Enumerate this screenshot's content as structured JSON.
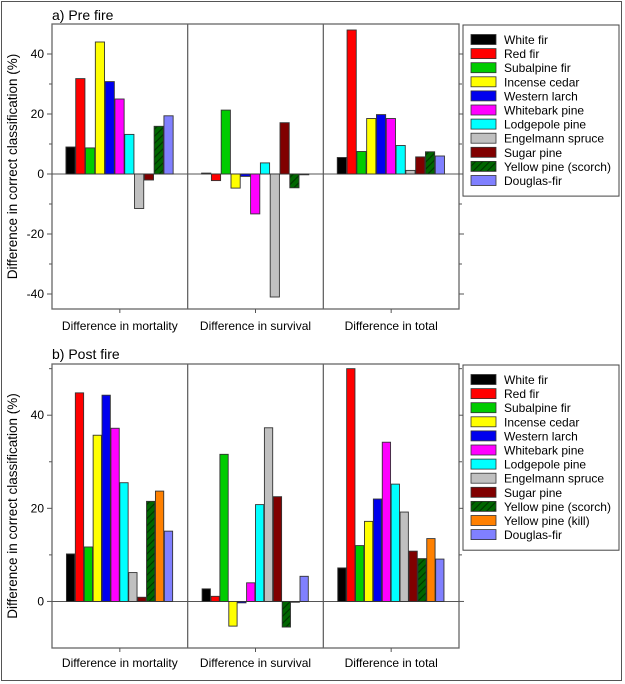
{
  "chart_data": [
    {
      "type": "bar",
      "title": "a) Pre fire",
      "ylabel": "Difference in correct classification (%)",
      "xlabel": "",
      "categories": [
        "Difference in mortality",
        "Difference in survival",
        "Difference in total"
      ],
      "ylim": [
        -45,
        50
      ],
      "yticks": [
        -40,
        -20,
        0,
        20,
        40
      ],
      "ytick_labels": [
        "-40",
        "-20",
        "0",
        "20",
        "40"
      ],
      "minor_yticks": [
        -30,
        -10,
        10,
        30
      ],
      "grid": false,
      "legend_position": "right",
      "series": [
        {
          "name": "White fir",
          "color": "#000000",
          "pattern": "solid",
          "values": [
            9,
            0.3,
            5.5
          ]
        },
        {
          "name": "Red fir",
          "color": "#ff0000",
          "pattern": "solid",
          "values": [
            31.8,
            -2.2,
            48
          ]
        },
        {
          "name": "Subalpine fir",
          "color": "#00cc00",
          "pattern": "solid",
          "values": [
            8.7,
            21.3,
            7.5
          ]
        },
        {
          "name": "Incense cedar",
          "color": "#ffff00",
          "pattern": "solid",
          "values": [
            44,
            -4.7,
            18.5
          ]
        },
        {
          "name": "Western larch",
          "color": "#0000ee",
          "pattern": "solid",
          "values": [
            30.8,
            -0.8,
            19.8
          ]
        },
        {
          "name": "Whitebark pine",
          "color": "#ff00ff",
          "pattern": "solid",
          "values": [
            25,
            -13.3,
            18.5
          ]
        },
        {
          "name": "Lodgepole pine",
          "color": "#00ffff",
          "pattern": "solid",
          "values": [
            13.2,
            3.7,
            9.5
          ]
        },
        {
          "name": "Engelmann spruce",
          "color": "#c0c0c0",
          "pattern": "solid",
          "values": [
            -11.5,
            -41,
            1.2
          ]
        },
        {
          "name": "Sugar pine",
          "color": "#800000",
          "pattern": "solid",
          "values": [
            -2,
            17.1,
            5.7
          ]
        },
        {
          "name": "Yellow pine (scorch)",
          "color": "#006600",
          "pattern": "hatch",
          "values": [
            15.9,
            -4.6,
            7.4
          ]
        },
        {
          "name": "Douglas-fir",
          "color": "#8080ff",
          "pattern": "solid",
          "values": [
            19.4,
            -0.2,
            6
          ]
        }
      ]
    },
    {
      "type": "bar",
      "title": "b) Post fire",
      "ylabel": "Difference in correct classification (%)",
      "xlabel": "",
      "categories": [
        "Difference in mortality",
        "Difference in survival",
        "Difference in total"
      ],
      "ylim": [
        -10,
        51
      ],
      "yticks": [
        0,
        20,
        40
      ],
      "ytick_labels": [
        "0",
        "20",
        "40"
      ],
      "minor_yticks": [
        10,
        30,
        50
      ],
      "grid": false,
      "legend_position": "right",
      "series": [
        {
          "name": "White fir",
          "color": "#000000",
          "pattern": "solid",
          "values": [
            10.2,
            2.7,
            7.2
          ]
        },
        {
          "name": "Red fir",
          "color": "#ff0000",
          "pattern": "solid",
          "values": [
            44.8,
            1.1,
            50
          ]
        },
        {
          "name": "Subalpine fir",
          "color": "#00cc00",
          "pattern": "solid",
          "values": [
            11.7,
            31.6,
            12
          ]
        },
        {
          "name": "Incense cedar",
          "color": "#ffff00",
          "pattern": "solid",
          "values": [
            35.7,
            -5.3,
            17.2
          ]
        },
        {
          "name": "Western larch",
          "color": "#0000ee",
          "pattern": "solid",
          "values": [
            44.3,
            -0.3,
            22
          ]
        },
        {
          "name": "Whitebark pine",
          "color": "#ff00ff",
          "pattern": "solid",
          "values": [
            37.2,
            4,
            34.2
          ]
        },
        {
          "name": "Lodgepole pine",
          "color": "#00ffff",
          "pattern": "solid",
          "values": [
            25.5,
            20.8,
            25.2
          ]
        },
        {
          "name": "Engelmann spruce",
          "color": "#c0c0c0",
          "pattern": "solid",
          "values": [
            6.2,
            37.3,
            19.2
          ]
        },
        {
          "name": "Sugar pine",
          "color": "#800000",
          "pattern": "solid",
          "values": [
            0.9,
            22.5,
            10.8
          ]
        },
        {
          "name": "Yellow pine (scorch)",
          "color": "#006600",
          "pattern": "hatch",
          "values": [
            21.5,
            -5.5,
            9.2
          ]
        },
        {
          "name": "Yellow pine (kill)",
          "color": "#ff8000",
          "pattern": "solid",
          "values": [
            23.7,
            0,
            13.5
          ]
        },
        {
          "name": "Douglas-fir",
          "color": "#8080ff",
          "pattern": "solid",
          "values": [
            15.1,
            5.4,
            9.1
          ]
        }
      ]
    }
  ]
}
